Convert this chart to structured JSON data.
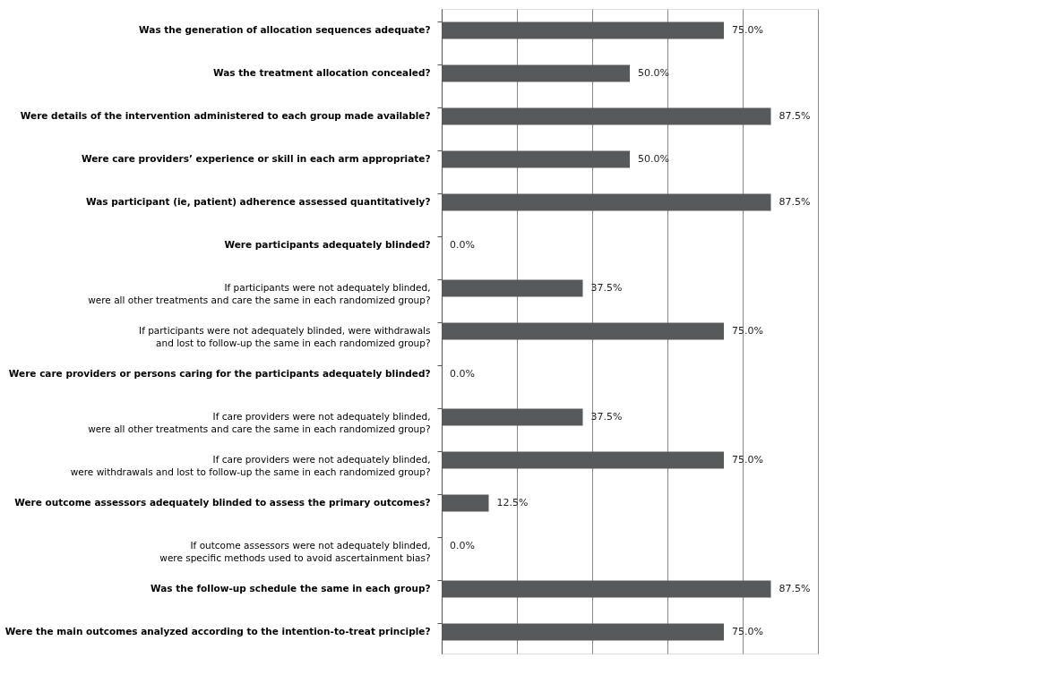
{
  "chart_data": {
    "type": "bar",
    "orientation": "horizontal",
    "categories": [
      "Was the generation of allocation sequences adequate?",
      "Was the treatment allocation concealed?",
      "Were details of the intervention administered to each group made available?",
      "Were care providers’ experience or skill in each arm appropriate?",
      "Was participant (ie, patient) adherence assessed quantitatively?",
      "Were participants adequately blinded?",
      "If participants were not adequately blinded,\nwere all other treatments and care the same in each randomized group?",
      "If participants were not adequately blinded, were withdrawals\nand lost to follow-up the same in each randomized group?",
      "Were care providers or persons caring for the participants adequately blinded?",
      "If care providers were not adequately blinded,\nwere all other treatments and care the same in each randomized group?",
      "If care providers were not adequately blinded,\nwere withdrawals and lost to follow-up the same in each randomized group?",
      "Were outcome assessors adequately blinded to assess the primary outcomes?",
      "If outcome assessors were not adequately blinded,\nwere specific methods used to avoid ascertainment bias?",
      "Was the follow-up schedule the same in each group?",
      "Were the main outcomes analyzed according to the intention-to-treat principle?"
    ],
    "values": [
      75.0,
      50.0,
      87.5,
      50.0,
      87.5,
      0.0,
      37.5,
      75.0,
      0.0,
      37.5,
      75.0,
      12.5,
      0.0,
      87.5,
      75.0
    ],
    "value_labels": [
      "75.0%",
      "50.0%",
      "87.5%",
      "50.0%",
      "87.5%",
      "0.0%",
      "37.5%",
      "75.0%",
      "0.0%",
      "37.5%",
      "75.0%",
      "12.5%",
      "0.0%",
      "87.5%",
      "75.0%"
    ],
    "color": "#58595b",
    "xlim": [
      0,
      100
    ],
    "xticks": [
      {
        "value": 0,
        "label": null
      },
      {
        "value": 20,
        "label": null
      },
      {
        "value": 40,
        "label": null
      },
      {
        "value": 60,
        "label": null
      },
      {
        "value": 80,
        "label": null
      },
      {
        "value": 100,
        "label": null
      }
    ],
    "tick_labels": "y",
    "grid": "x"
  }
}
